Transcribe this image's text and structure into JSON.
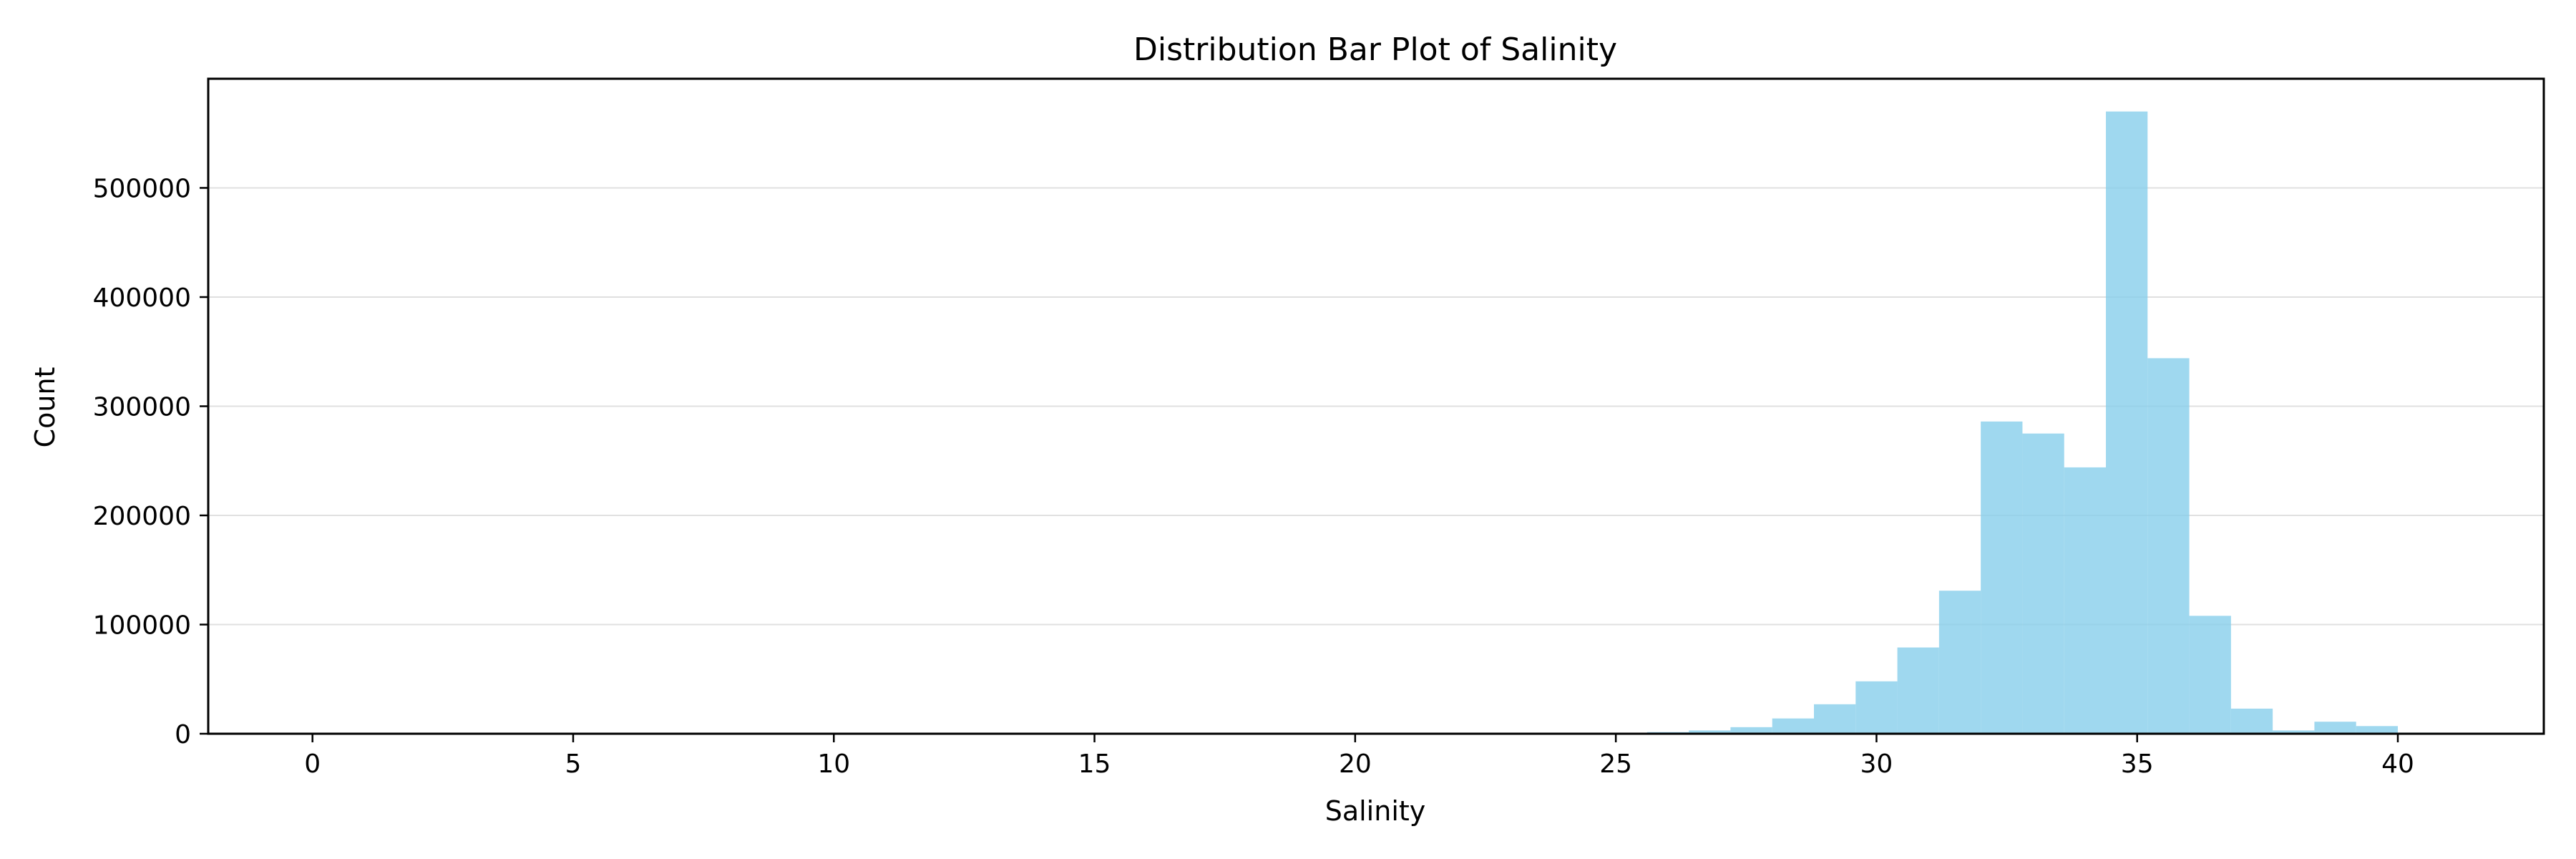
{
  "chart_data": {
    "type": "bar",
    "title": "Distribution Bar Plot of Salinity",
    "xlabel": "Salinity",
    "ylabel": "Count",
    "xlim": [
      -2,
      42.8
    ],
    "ylim": [
      0,
      600000
    ],
    "xticks": [
      0,
      5,
      10,
      15,
      20,
      25,
      30,
      35,
      40
    ],
    "yticks": [
      0,
      100000,
      200000,
      300000,
      400000,
      500000
    ],
    "bin_width": 0.8,
    "bins": [
      {
        "x0": 0.0,
        "value": 0
      },
      {
        "x0": 24.8,
        "value": 500
      },
      {
        "x0": 25.6,
        "value": 1500
      },
      {
        "x0": 26.4,
        "value": 3000
      },
      {
        "x0": 27.2,
        "value": 6000
      },
      {
        "x0": 28.0,
        "value": 14000
      },
      {
        "x0": 28.8,
        "value": 27000
      },
      {
        "x0": 29.6,
        "value": 48000
      },
      {
        "x0": 30.4,
        "value": 79000
      },
      {
        "x0": 31.2,
        "value": 131000
      },
      {
        "x0": 32.0,
        "value": 286000
      },
      {
        "x0": 32.8,
        "value": 275000
      },
      {
        "x0": 33.6,
        "value": 244000
      },
      {
        "x0": 34.4,
        "value": 570000
      },
      {
        "x0": 35.2,
        "value": 344000
      },
      {
        "x0": 36.0,
        "value": 108000
      },
      {
        "x0": 36.8,
        "value": 23000
      },
      {
        "x0": 37.6,
        "value": 3000
      },
      {
        "x0": 38.4,
        "value": 11000
      },
      {
        "x0": 39.2,
        "value": 7000
      },
      {
        "x0": 40.0,
        "value": 1000
      }
    ],
    "grid": {
      "y": true,
      "x": false
    },
    "colors": {
      "bar": "#87ceeb",
      "grid": "#e0e0e0",
      "axis": "#000000"
    }
  }
}
